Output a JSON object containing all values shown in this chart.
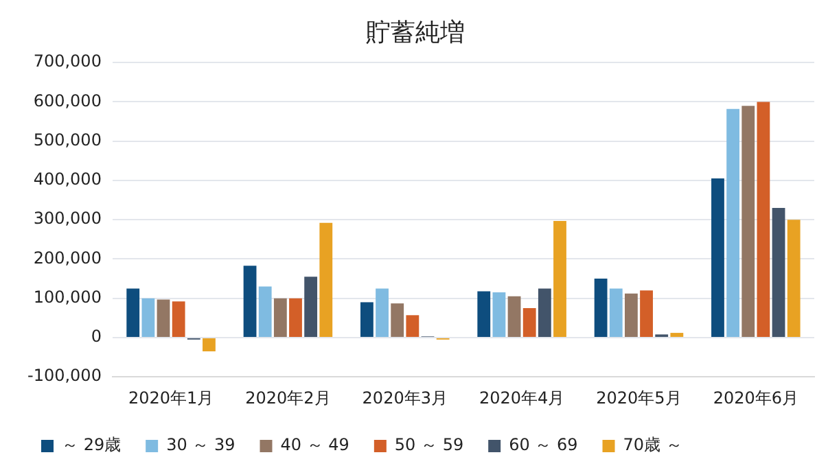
{
  "chart_data": {
    "type": "bar",
    "title": "貯蓄純増",
    "categories": [
      "2020年1月",
      "2020年2月",
      "2020年3月",
      "2020年4月",
      "2020年5月",
      "2020年6月"
    ],
    "series": [
      {
        "name": "～ 29歳",
        "color": "#0e4d7e",
        "values": [
          125000,
          183000,
          90000,
          118000,
          150000,
          405000
        ]
      },
      {
        "name": "30 ～ 39",
        "color": "#7fbbe1",
        "values": [
          100000,
          130000,
          125000,
          115000,
          125000,
          582000
        ]
      },
      {
        "name": "40 ～ 49",
        "color": "#937764",
        "values": [
          97000,
          100000,
          87000,
          105000,
          112000,
          590000
        ]
      },
      {
        "name": "50 ～ 59",
        "color": "#d35f28",
        "values": [
          92000,
          100000,
          57000,
          75000,
          120000,
          600000
        ]
      },
      {
        "name": "60 ～ 69",
        "color": "#42546a",
        "values": [
          -5000,
          155000,
          3000,
          125000,
          8000,
          330000
        ]
      },
      {
        "name": "70歳 ～",
        "color": "#e8a223",
        "values": [
          -35000,
          292000,
          -5000,
          297000,
          12000,
          300000
        ]
      }
    ],
    "ylim": [
      -100000,
      700000
    ],
    "yticks": [
      {
        "value": -100000,
        "label": "-100,000"
      },
      0,
      {
        "value": 100000,
        "label": "100,000"
      },
      {
        "value": 200000,
        "label": "200,000"
      },
      {
        "value": 300000,
        "label": "300,000"
      },
      {
        "value": 400000,
        "label": "400,000"
      },
      {
        "value": 500000,
        "label": "500,000"
      },
      {
        "value": 600000,
        "label": "600,000"
      },
      {
        "value": 700000,
        "label": "700,000"
      }
    ],
    "grid": "y",
    "legend": "bottom left"
  }
}
